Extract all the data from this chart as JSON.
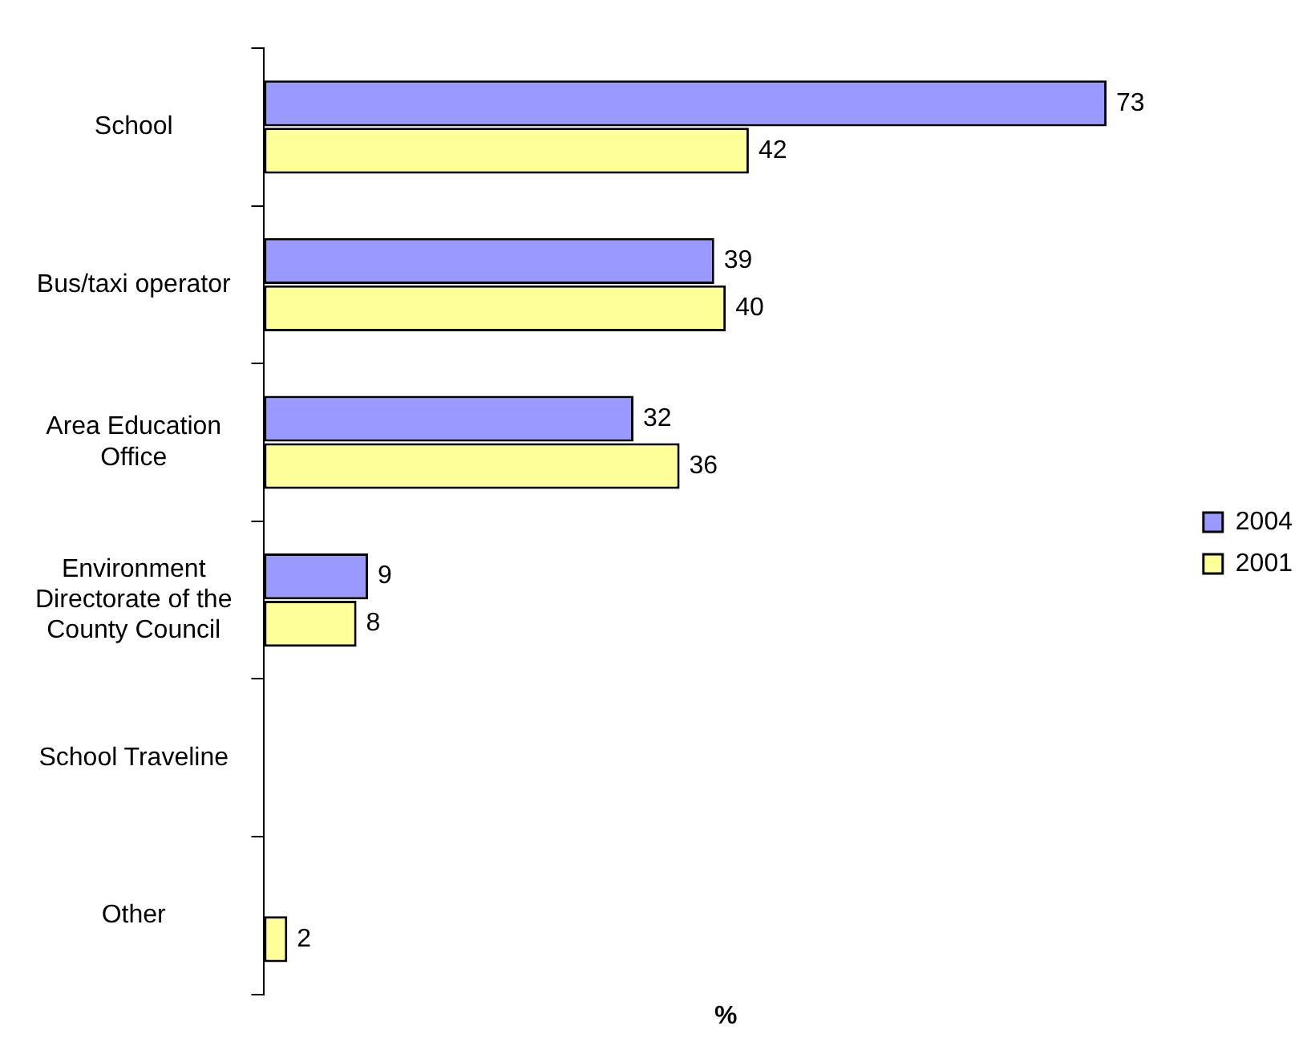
{
  "chart_data": {
    "type": "bar",
    "orientation": "horizontal",
    "xlabel": "%",
    "categories": [
      "School",
      "Bus/taxi operator",
      "Area Education Office",
      "Environment Directorate of the County Council",
      "School Traveline",
      "Other"
    ],
    "series": [
      {
        "name": "2004",
        "color": "#9999ff",
        "values": [
          73,
          39,
          32,
          9,
          null,
          null
        ]
      },
      {
        "name": "2001",
        "color": "#ffff99",
        "values": [
          42,
          40,
          36,
          8,
          null,
          2
        ]
      }
    ],
    "data_labels": true,
    "legend": "right",
    "grid": false
  }
}
